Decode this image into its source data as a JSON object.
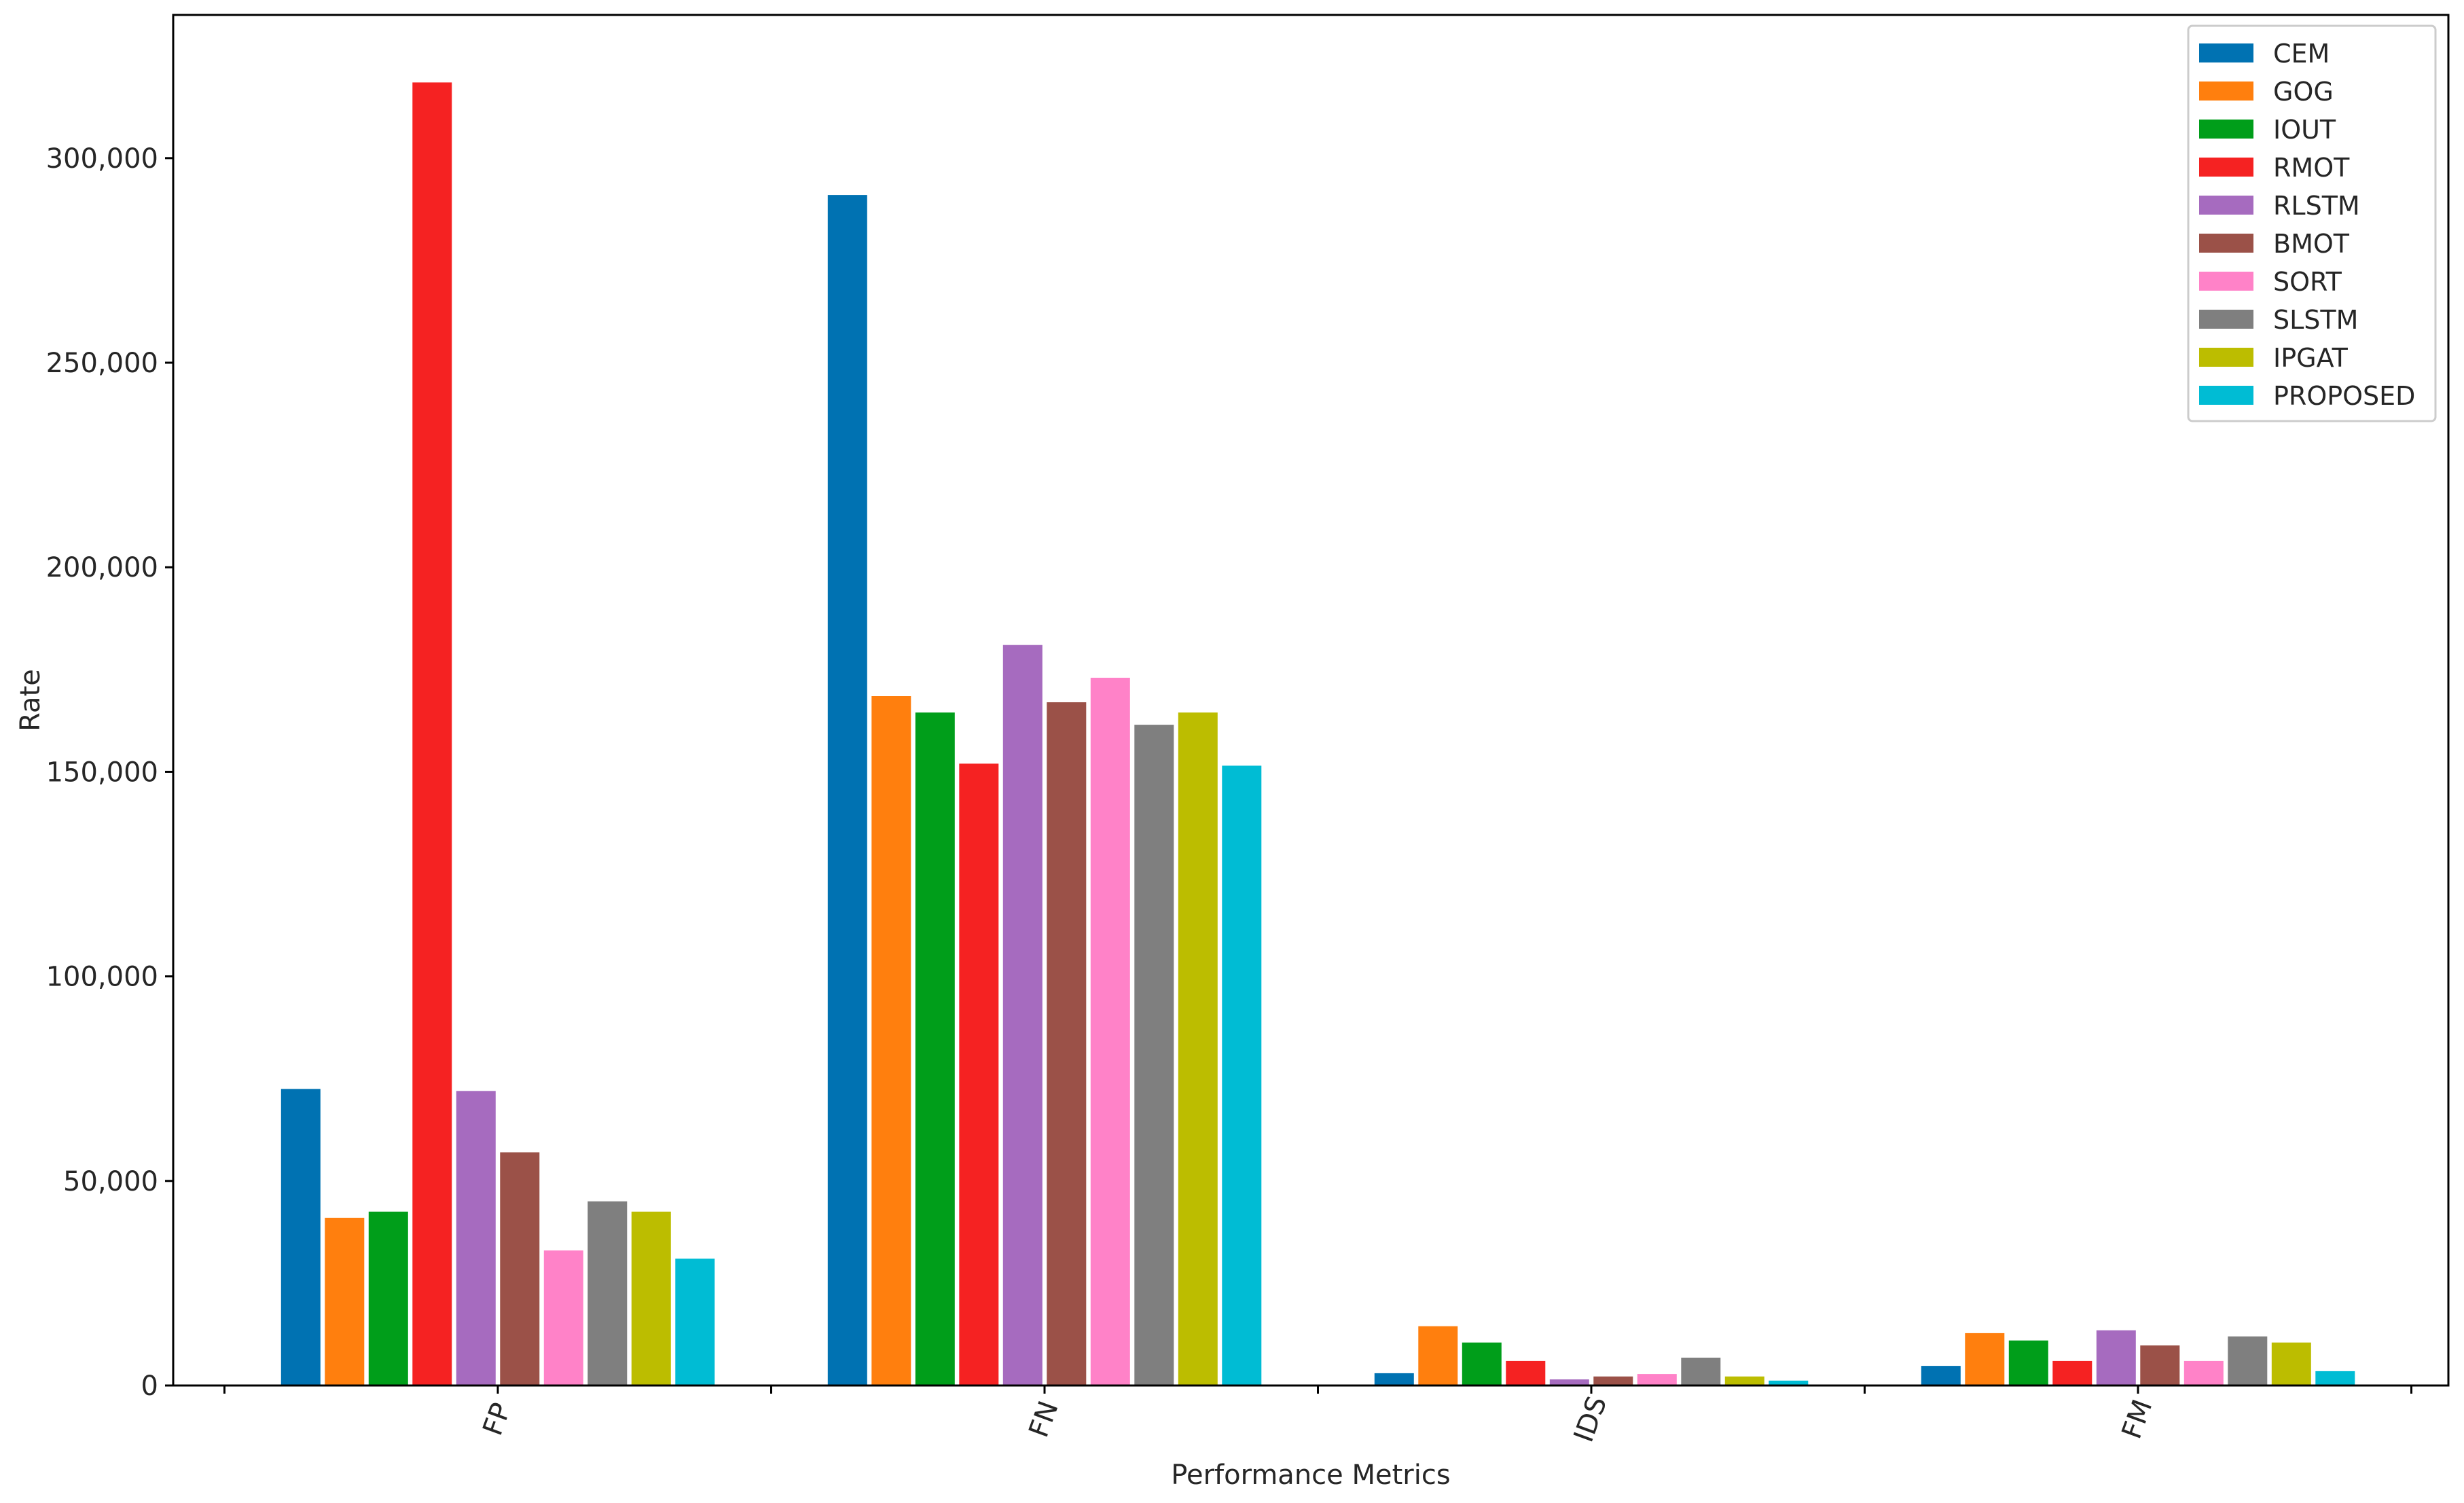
{
  "chart_data": {
    "type": "bar",
    "title": "",
    "xlabel": "Performance Metrics",
    "ylabel": "Rate",
    "categories": [
      "FP",
      "FN",
      "IDS",
      "FM"
    ],
    "ylim": [
      0,
      335000
    ],
    "yticks": [
      0,
      50000,
      100000,
      150000,
      200000,
      250000,
      300000
    ],
    "ytick_labels": [
      "0",
      "50,000",
      "100,000",
      "150,000",
      "200,000",
      "250,000",
      "300,000"
    ],
    "x_tick_rotation": "rotated",
    "grid": false,
    "legend_position": "top-right",
    "series": [
      {
        "name": "CEM",
        "color": "#0072b2",
        "values": [
          72500,
          291000,
          3000,
          4800
        ]
      },
      {
        "name": "GOG",
        "color": "#ff7f0e",
        "values": [
          41000,
          168500,
          14500,
          12800
        ]
      },
      {
        "name": "IOUT",
        "color": "#009e1a",
        "values": [
          42500,
          164500,
          10500,
          11000
        ]
      },
      {
        "name": "RMOT",
        "color": "#f52222",
        "values": [
          318500,
          152000,
          6000,
          6000
        ]
      },
      {
        "name": "RLSTM",
        "color": "#a66bbf",
        "values": [
          72000,
          181000,
          1500,
          13500
        ]
      },
      {
        "name": "BMOT",
        "color": "#9b5148",
        "values": [
          57000,
          167000,
          2200,
          9800
        ]
      },
      {
        "name": "SORT",
        "color": "#ff82c8",
        "values": [
          33000,
          173000,
          2800,
          6000
        ]
      },
      {
        "name": "SLSTM",
        "color": "#7f7f7f",
        "values": [
          45000,
          161500,
          6800,
          12000
        ]
      },
      {
        "name": "IPGAT",
        "color": "#bcbd00",
        "values": [
          42500,
          164500,
          2200,
          10500
        ]
      },
      {
        "name": "PROPOSED",
        "color": "#00bcd4",
        "values": [
          31000,
          151500,
          1200,
          3500
        ]
      }
    ]
  }
}
